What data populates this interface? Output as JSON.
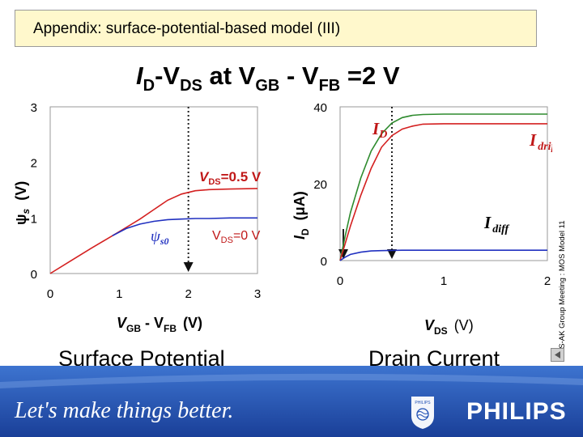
{
  "slide": {
    "title": "Appendix: surface-potential-based model (III)",
    "headline": {
      "i": "I",
      "d": "D",
      "dash": "-V",
      "ds": "DS",
      "at": " at V",
      "gb": "GB",
      "minus": " - V",
      "fb": "FB",
      "rest": " =2 V"
    },
    "side_note": "MOS-AK Group Meeting : MOS Model 11",
    "caption_left": "Surface Potential",
    "caption_right": "Drain Current",
    "footer": {
      "slogan": "Let's make things better.",
      "brand": "PHILIPS",
      "shield_text": "PHILIPS"
    }
  },
  "colors": {
    "title_bg": "#fff8cc",
    "red": "#d42020",
    "green": "#2e8b2e",
    "blue": "#2030c0",
    "label_red": "#c01818",
    "footer_blue": "#1e4fb4"
  },
  "chart_data": [
    {
      "type": "line",
      "xlim": [
        0,
        3
      ],
      "ylim": [
        0,
        3
      ],
      "xticks": [
        "0",
        "1",
        "2",
        "3"
      ],
      "yticks": [
        "0",
        "1",
        "2",
        "3"
      ],
      "xlabel": {
        "v": "V",
        "gb": "GB",
        "minus": " - V",
        "fb": "FB",
        "unit": "(V)"
      },
      "ylabel": {
        "psi": "ψ",
        "s": "s",
        "unit": "(V)"
      },
      "marker_x": 2,
      "series": [
        {
          "key": "vds05",
          "x": [
            0,
            0.3,
            0.6,
            0.9,
            1.1,
            1.3,
            1.5,
            1.7,
            1.9,
            2.1,
            2.3,
            2.6,
            3.0
          ],
          "y": [
            0,
            0.23,
            0.46,
            0.68,
            0.83,
            0.98,
            1.15,
            1.32,
            1.43,
            1.49,
            1.51,
            1.52,
            1.53
          ]
        },
        {
          "key": "vds0",
          "x": [
            0.9,
            1.1,
            1.3,
            1.5,
            1.7,
            1.9,
            2.1,
            2.3,
            2.6,
            3.0
          ],
          "y": [
            0.68,
            0.81,
            0.89,
            0.94,
            0.97,
            0.98,
            0.99,
            0.99,
            1.0,
            1.0
          ]
        }
      ],
      "annotations": {
        "vds05": {
          "v": "V",
          "sub": "DS",
          "val": "=0.5 V"
        },
        "vds0": {
          "v": "V",
          "sub": "DS",
          "val": "=0 V"
        },
        "psis0": {
          "psi": "ψ",
          "sub": "s0"
        }
      }
    },
    {
      "type": "line",
      "xlim": [
        0,
        2
      ],
      "ylim": [
        0,
        40
      ],
      "xticks": [
        "0",
        "1",
        "2"
      ],
      "yticks": [
        "0",
        "20",
        "40"
      ],
      "xlabel": {
        "v": "V",
        "sub": "DS",
        "unit": "(V)"
      },
      "ylabel": {
        "i": "I",
        "sub": "D",
        "unit": "(μA)"
      },
      "marker_x": 0.5,
      "series": [
        {
          "key": "id",
          "x": [
            0,
            0.05,
            0.1,
            0.2,
            0.3,
            0.4,
            0.5,
            0.6,
            0.7,
            0.8,
            1.0,
            1.4,
            2.0
          ],
          "y": [
            0,
            6.5,
            12.5,
            21.5,
            28.5,
            33,
            35.8,
            37.2,
            37.8,
            38,
            38.1,
            38.1,
            38.1
          ]
        },
        {
          "key": "idrift",
          "x": [
            0,
            0.05,
            0.1,
            0.2,
            0.3,
            0.4,
            0.5,
            0.6,
            0.7,
            0.8,
            1.0,
            1.4,
            2.0
          ],
          "y": [
            0,
            4.5,
            9,
            17,
            24,
            29.5,
            32.5,
            34.2,
            35,
            35.5,
            35.6,
            35.6,
            35.6
          ]
        },
        {
          "key": "idiff",
          "x": [
            0,
            0.05,
            0.1,
            0.2,
            0.3,
            0.4,
            0.6,
            0.8,
            1.0,
            1.4,
            2.0
          ],
          "y": [
            0,
            0.9,
            1.6,
            2.2,
            2.5,
            2.6,
            2.7,
            2.7,
            2.7,
            2.7,
            2.7
          ]
        }
      ],
      "annotations": {
        "id": {
          "i": "I",
          "sub": "D"
        },
        "idrift": {
          "i": "I",
          "sub": "drift"
        },
        "idiff": {
          "i": "I",
          "sub": "diff"
        }
      }
    }
  ]
}
